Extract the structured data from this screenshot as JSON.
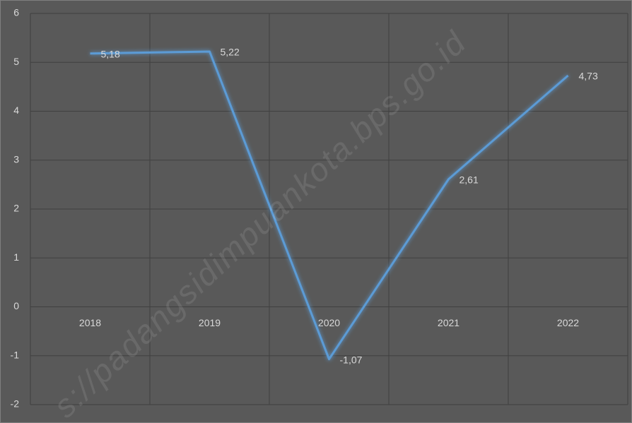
{
  "chart_data": {
    "type": "line",
    "categories": [
      "2018",
      "2019",
      "2020",
      "2021",
      "2022"
    ],
    "series": [
      {
        "color": "#5b9bd5",
        "values": [
          5.18,
          5.22,
          -1.07,
          2.61,
          4.73
        ],
        "value_labels": [
          "5,18",
          "5,22",
          "-1,07",
          "2,61",
          "4,73"
        ]
      }
    ],
    "ylim": [
      -2,
      6
    ],
    "yticks": [
      -2,
      -1,
      0,
      1,
      2,
      3,
      4,
      5,
      6
    ],
    "grid": true,
    "watermark": "s://padangsidimpuankota.bps.go.id"
  }
}
